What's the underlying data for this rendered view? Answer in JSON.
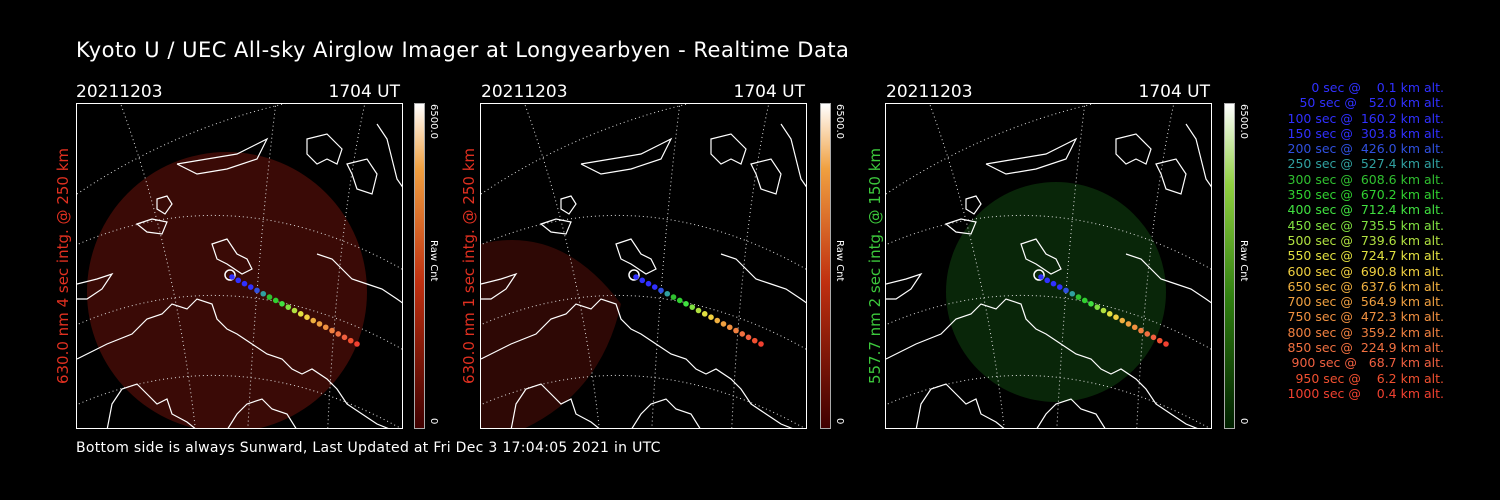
{
  "title": "Kyoto U / UEC All-sky Airglow Imager at Longyearbyen - Realtime Data",
  "footer": "Bottom side is always Sunward, Last Updated at Fri Dec  3 17:04:05 2021 in UTC",
  "panels": [
    {
      "date": "20211203",
      "time": "1704 UT",
      "label": "630.0 nm 4 sec intg. @ 250 km",
      "label_color": "#e03020",
      "cbar_max": "6500.0",
      "cbar_unit": "Raw Cnt",
      "cbar_min": "0"
    },
    {
      "date": "20211203",
      "time": "1704 UT",
      "label": "630.0 nm 1 sec intg. @ 250 km",
      "label_color": "#e03020",
      "cbar_max": "6500.0",
      "cbar_unit": "Raw Cnt",
      "cbar_min": "0"
    },
    {
      "date": "20211203",
      "time": "1704 UT",
      "label": "557.7 nm 2 sec intg. @ 150 km",
      "label_color": "#3cc83c",
      "cbar_max": "6500.0",
      "cbar_unit": "Raw Cnt",
      "cbar_min": "0"
    }
  ],
  "colors": {
    "red_glow": "#3a0a06",
    "green_glow": "#0a2a0a"
  },
  "legend": [
    {
      "text": "   0 sec @    0.1 km alt.",
      "color": "#3030ff"
    },
    {
      "text": "  50 sec @   52.0 km alt.",
      "color": "#3030ff"
    },
    {
      "text": " 100 sec @  160.2 km alt.",
      "color": "#3030ff"
    },
    {
      "text": " 150 sec @  303.8 km alt.",
      "color": "#3030ff"
    },
    {
      "text": " 200 sec @  426.0 km alt.",
      "color": "#3050e0"
    },
    {
      "text": " 250 sec @  527.4 km alt.",
      "color": "#30a0a0"
    },
    {
      "text": " 300 sec @  608.6 km alt.",
      "color": "#30c030"
    },
    {
      "text": " 350 sec @  670.2 km alt.",
      "color": "#30d030"
    },
    {
      "text": " 400 sec @  712.4 km alt.",
      "color": "#40e040"
    },
    {
      "text": " 450 sec @  735.5 km alt.",
      "color": "#80e040"
    },
    {
      "text": " 500 sec @  739.6 km alt.",
      "color": "#b0e040"
    },
    {
      "text": " 550 sec @  724.7 km alt.",
      "color": "#e0e040"
    },
    {
      "text": " 600 sec @  690.8 km alt.",
      "color": "#f0d040"
    },
    {
      "text": " 650 sec @  637.6 km alt.",
      "color": "#f0b040"
    },
    {
      "text": " 700 sec @  564.9 km alt.",
      "color": "#f0a040"
    },
    {
      "text": " 750 sec @  472.3 km alt.",
      "color": "#f09040"
    },
    {
      "text": " 800 sec @  359.2 km alt.",
      "color": "#f08040"
    },
    {
      "text": " 850 sec @  224.9 km alt.",
      "color": "#f07040"
    },
    {
      "text": " 900 sec @   68.7 km alt.",
      "color": "#f06040"
    },
    {
      "text": " 950 sec @    6.2 km alt.",
      "color": "#f05030"
    },
    {
      "text": "1000 sec @    0.4 km alt.",
      "color": "#f04030"
    }
  ]
}
